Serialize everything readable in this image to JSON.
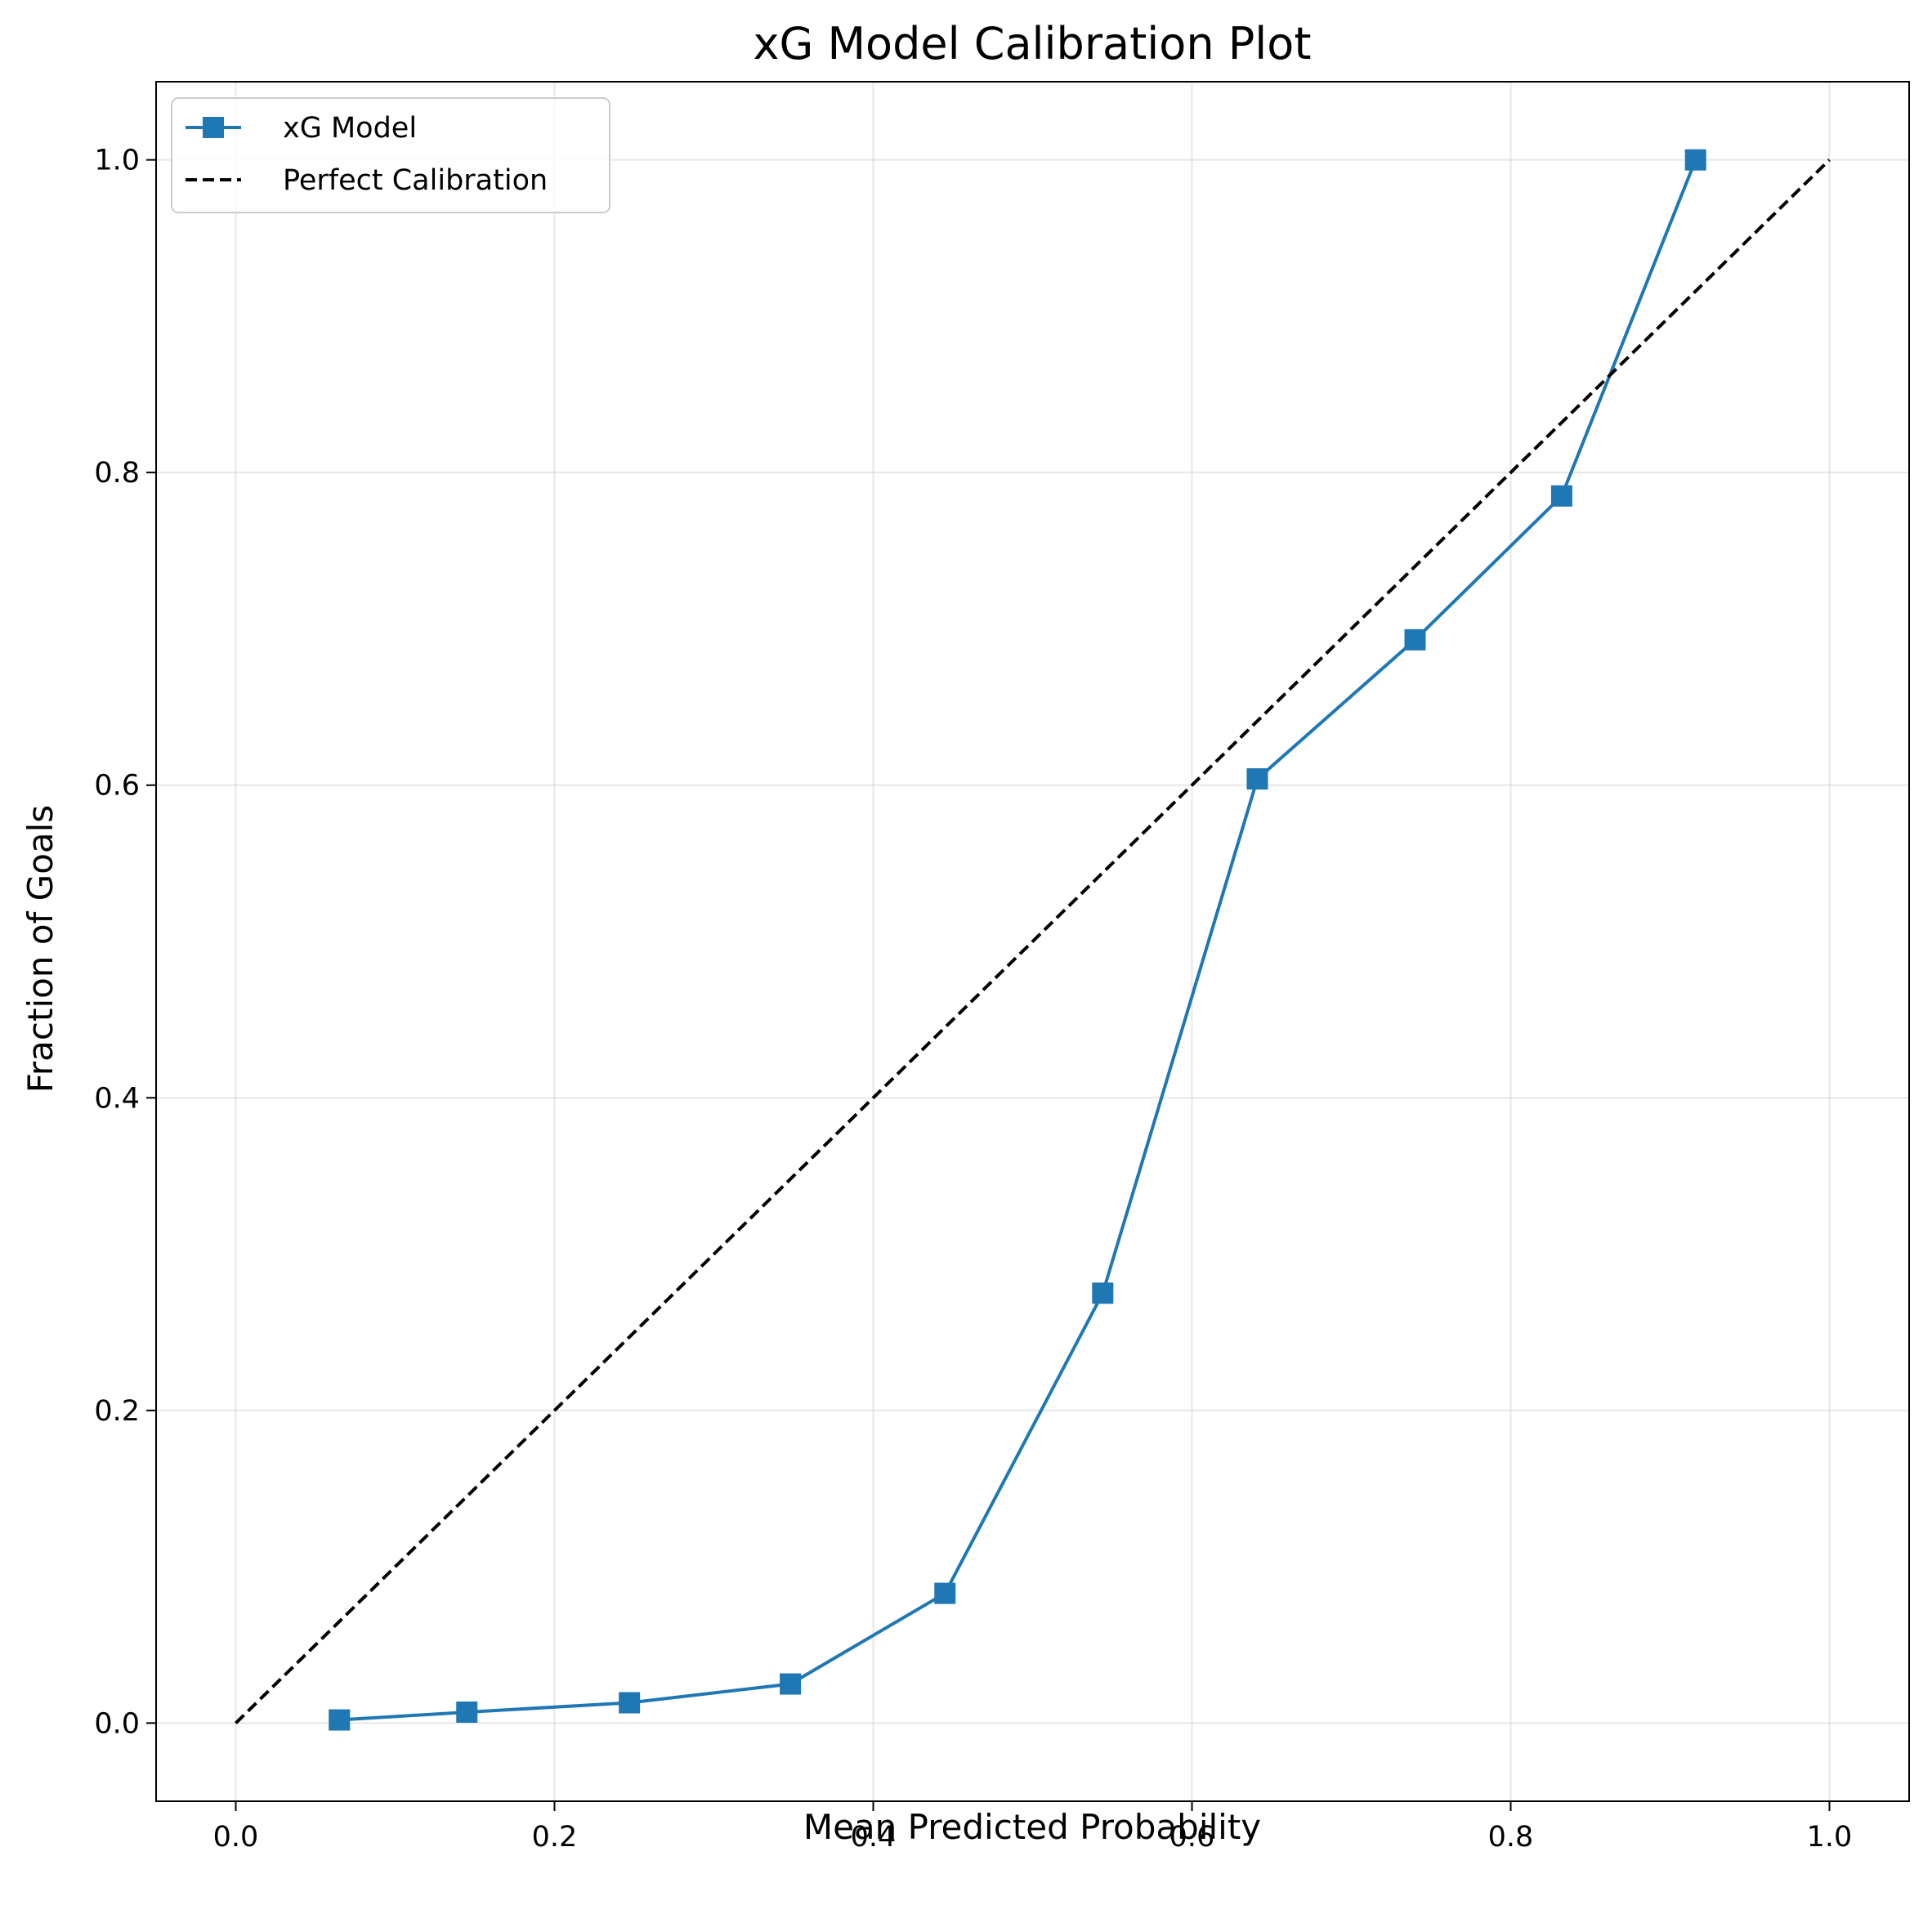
{
  "chart_data": {
    "type": "line",
    "title": "xG Model Calibration Plot",
    "xlabel": "Mean Predicted Probability",
    "ylabel": "Fraction of Goals",
    "xlim": [
      -0.05,
      1.05
    ],
    "ylim": [
      -0.05,
      1.05
    ],
    "xticks": [
      "0.0",
      "0.2",
      "0.4",
      "0.6",
      "0.8",
      "1.0"
    ],
    "yticks": [
      "0.0",
      "0.2",
      "0.4",
      "0.6",
      "0.8",
      "1.0"
    ],
    "grid": true,
    "legend": "top-left",
    "series": [
      {
        "name": "xG Model",
        "color": "#1f77b4",
        "marker": "square",
        "style": "solid",
        "x": [
          0.065,
          0.145,
          0.247,
          0.348,
          0.445,
          0.544,
          0.641,
          0.74,
          0.832,
          0.916
        ],
        "y": [
          0.002,
          0.007,
          0.013,
          0.025,
          0.083,
          0.275,
          0.604,
          0.693,
          0.785,
          1.0
        ]
      },
      {
        "name": "Perfect Calibration",
        "color": "#000000",
        "marker": "none",
        "style": "dashed",
        "x": [
          0.0,
          1.0
        ],
        "y": [
          0.0,
          1.0
        ]
      }
    ]
  }
}
